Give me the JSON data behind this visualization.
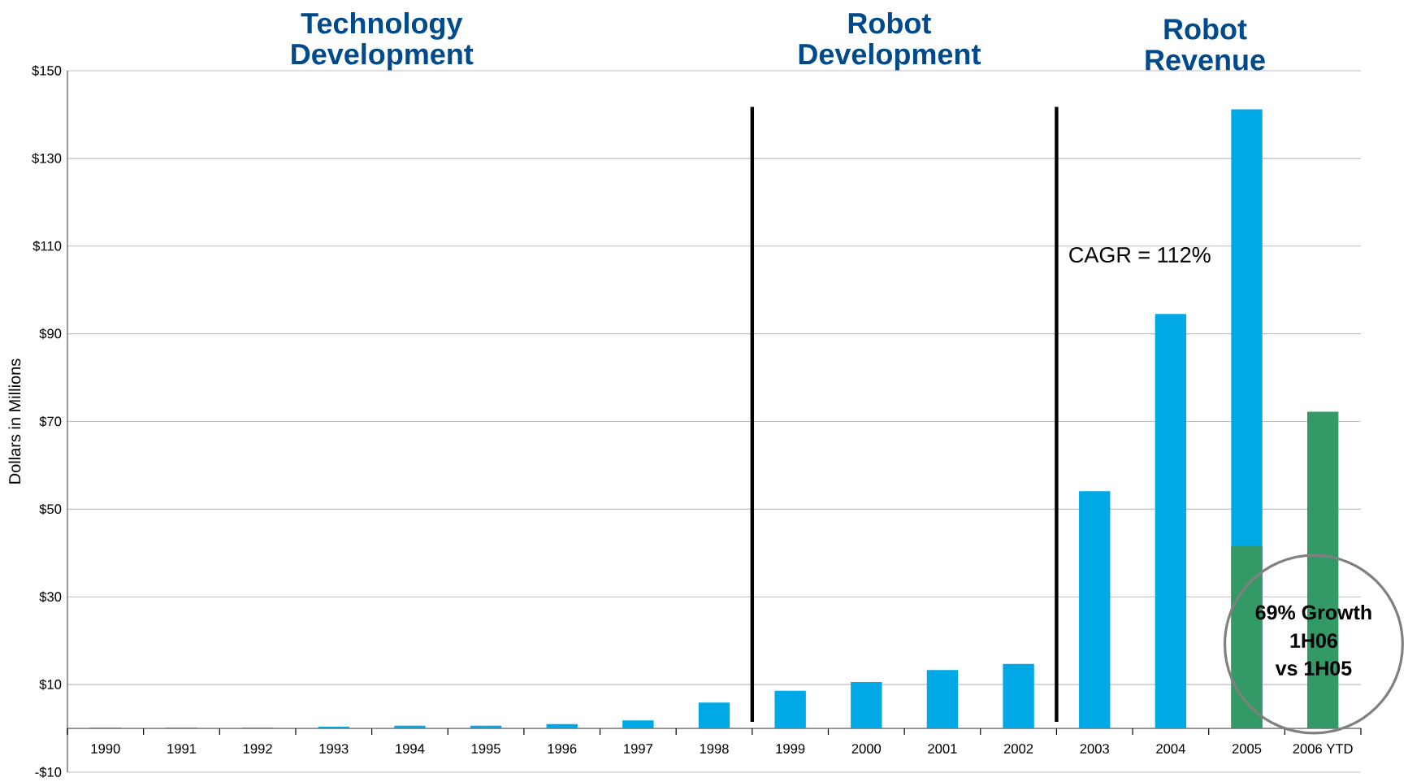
{
  "chart_data": {
    "type": "bar",
    "ylabel": "Dollars in Millions",
    "categories": [
      "1990",
      "1991",
      "1992",
      "1993",
      "1994",
      "1995",
      "1996",
      "1997",
      "1998",
      "1999",
      "2000",
      "2001",
      "2002",
      "2003",
      "2004",
      "2005",
      "2006 YTD"
    ],
    "series": [
      {
        "color": "#00a9e6",
        "values": [
          0.2,
          0.2,
          0.2,
          0.4,
          0.6,
          0.6,
          1.0,
          1.8,
          5.9,
          8.6,
          10.6,
          13.3,
          14.7,
          54.1,
          94.5,
          141.2,
          null
        ]
      },
      {
        "color": "#339966",
        "values": [
          null,
          null,
          null,
          null,
          null,
          null,
          null,
          null,
          null,
          null,
          null,
          null,
          null,
          null,
          null,
          41.6,
          72.2
        ]
      }
    ],
    "ylim": [
      -10,
      150
    ],
    "yticks": [
      {
        "value": -10,
        "label": "-$10"
      },
      {
        "value": 10,
        "label": "$10"
      },
      {
        "value": 30,
        "label": "$30"
      },
      {
        "value": 50,
        "label": "$50"
      },
      {
        "value": 70,
        "label": "$70"
      },
      {
        "value": 90,
        "label": "$90"
      },
      {
        "value": 110,
        "label": "$110"
      },
      {
        "value": 130,
        "label": "$130"
      },
      {
        "value": 150,
        "label": "$150"
      }
    ],
    "grid": "y",
    "annotations": [
      "Technology Development",
      "Robot Development",
      "Robot Revenue",
      "CAGR = 112%",
      "69% Growth",
      "1H06",
      "vs 1H05"
    ]
  }
}
